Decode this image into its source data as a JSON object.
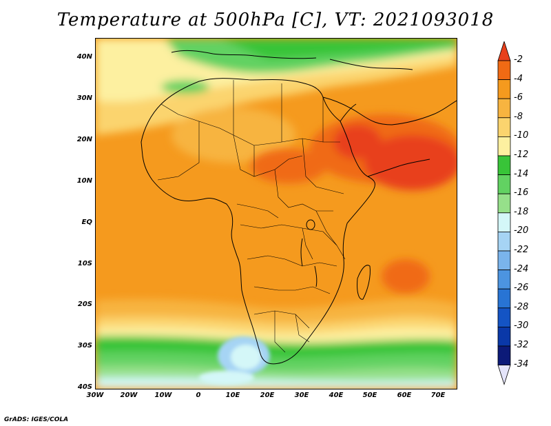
{
  "title": "Temperature at 500hPa [C], VT: 2021093018",
  "y_ticks": [
    "40N",
    "30N",
    "20N",
    "10N",
    "EQ",
    "10S",
    "20S",
    "30S",
    "40S"
  ],
  "x_ticks": [
    "30W",
    "20W",
    "10W",
    "0",
    "10E",
    "20E",
    "30E",
    "40E",
    "50E",
    "60E",
    "70E"
  ],
  "colorbar": {
    "labels": [
      "-2",
      "-4",
      "-6",
      "-8",
      "-10",
      "-12",
      "-14",
      "-16",
      "-18",
      "-20",
      "-22",
      "-24",
      "-26",
      "-28",
      "-30",
      "-32",
      "-34"
    ],
    "colors": [
      "#e8401c",
      "#f06a14",
      "#f59a1e",
      "#f7b440",
      "#fbd46e",
      "#fdf0a0",
      "#38c438",
      "#62d262",
      "#96e08a",
      "#d4f7f8",
      "#a6d4f4",
      "#7ab4ec",
      "#4c94e0",
      "#2874d4",
      "#1454c4",
      "#0a38a8",
      "#0c1a78",
      "#e4e4fa"
    ]
  },
  "credit": "GrADS: IGES/COLA"
}
